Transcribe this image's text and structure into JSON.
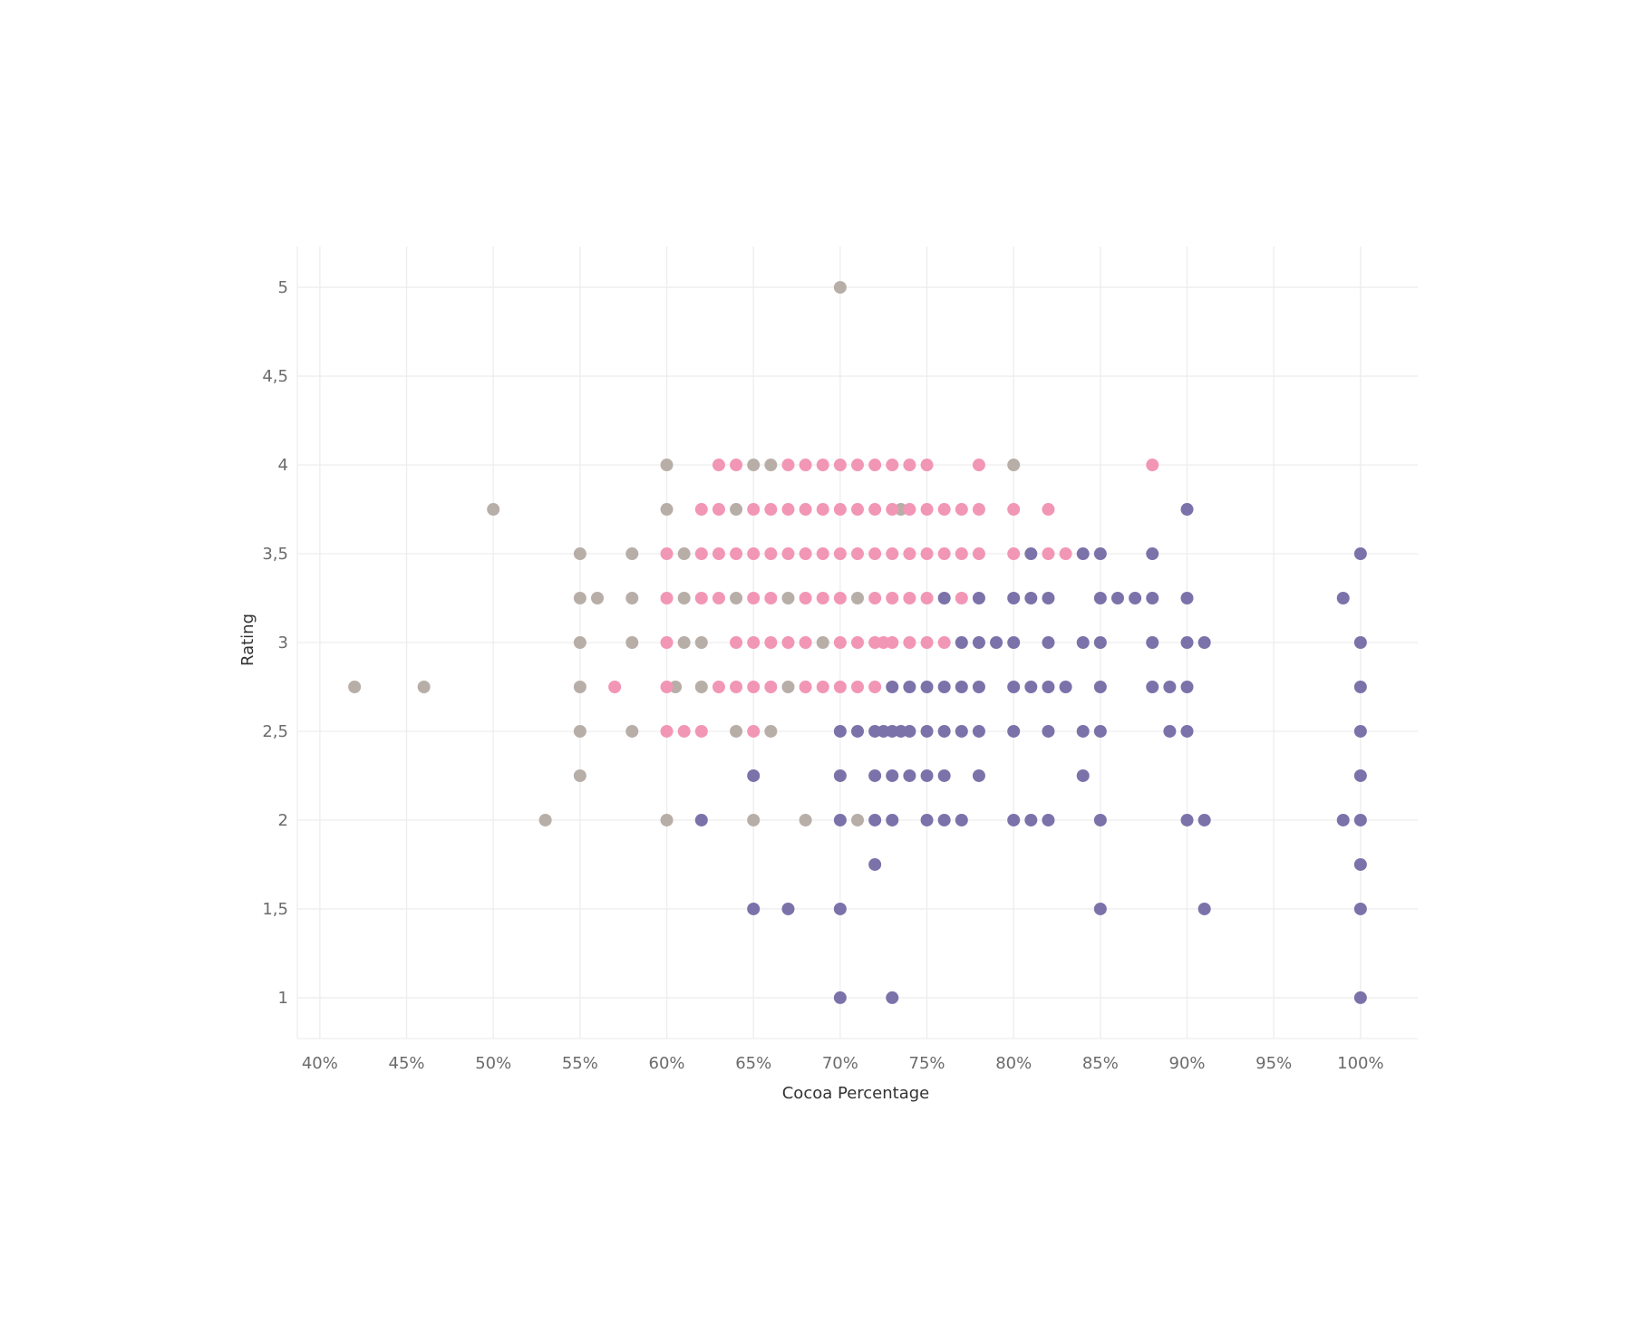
{
  "chart_data": {
    "type": "scatter",
    "title": "",
    "xlabel": "Cocoa Percentage",
    "ylabel": "Rating",
    "xlim": [
      38.7,
      103.3
    ],
    "ylim": [
      0.77,
      5.23
    ],
    "x_ticks": [
      40,
      45,
      50,
      55,
      60,
      65,
      70,
      75,
      80,
      85,
      90,
      95,
      100
    ],
    "x_tick_labels": [
      "40%",
      "45%",
      "50%",
      "55%",
      "60%",
      "65%",
      "70%",
      "75%",
      "80%",
      "85%",
      "90%",
      "95%",
      "100%"
    ],
    "y_ticks": [
      1,
      1.5,
      2,
      2.5,
      3,
      3.5,
      4,
      4.5,
      5
    ],
    "y_tick_labels": [
      "1",
      "1,5",
      "2",
      "2,5",
      "3",
      "3,5",
      "4",
      "4,5",
      "5"
    ],
    "grid": true,
    "legend": "none",
    "series": [
      {
        "color": "#b8aea8",
        "points": [
          [
            70,
            5
          ],
          [
            60,
            4
          ],
          [
            65,
            4
          ],
          [
            66,
            4
          ],
          [
            80,
            4
          ],
          [
            50,
            3.75
          ],
          [
            60,
            3.75
          ],
          [
            64,
            3.75
          ],
          [
            73.5,
            3.75
          ],
          [
            55,
            3.5
          ],
          [
            58,
            3.5
          ],
          [
            61,
            3.5
          ],
          [
            55,
            3.25
          ],
          [
            56,
            3.25
          ],
          [
            58,
            3.25
          ],
          [
            61,
            3.25
          ],
          [
            64,
            3.25
          ],
          [
            67,
            3.25
          ],
          [
            71,
            3.25
          ],
          [
            55,
            3
          ],
          [
            58,
            3
          ],
          [
            61,
            3
          ],
          [
            62,
            3
          ],
          [
            69,
            3
          ],
          [
            42,
            2.75
          ],
          [
            46,
            2.75
          ],
          [
            55,
            2.75
          ],
          [
            60.5,
            2.75
          ],
          [
            62,
            2.75
          ],
          [
            67,
            2.75
          ],
          [
            55,
            2.5
          ],
          [
            58,
            2.5
          ],
          [
            64,
            2.5
          ],
          [
            66,
            2.5
          ],
          [
            55,
            2.25
          ],
          [
            53,
            2
          ],
          [
            60,
            2
          ],
          [
            65,
            2
          ],
          [
            68,
            2
          ],
          [
            71,
            2
          ]
        ]
      },
      {
        "color": "#f296b6",
        "points": [
          [
            63,
            4
          ],
          [
            64,
            4
          ],
          [
            67,
            4
          ],
          [
            68,
            4
          ],
          [
            69,
            4
          ],
          [
            70,
            4
          ],
          [
            71,
            4
          ],
          [
            72,
            4
          ],
          [
            73,
            4
          ],
          [
            74,
            4
          ],
          [
            75,
            4
          ],
          [
            78,
            4
          ],
          [
            88,
            4
          ],
          [
            62,
            3.75
          ],
          [
            63,
            3.75
          ],
          [
            65,
            3.75
          ],
          [
            66,
            3.75
          ],
          [
            67,
            3.75
          ],
          [
            68,
            3.75
          ],
          [
            69,
            3.75
          ],
          [
            70,
            3.75
          ],
          [
            71,
            3.75
          ],
          [
            72,
            3.75
          ],
          [
            73,
            3.75
          ],
          [
            74,
            3.75
          ],
          [
            75,
            3.75
          ],
          [
            76,
            3.75
          ],
          [
            77,
            3.75
          ],
          [
            78,
            3.75
          ],
          [
            80,
            3.75
          ],
          [
            82,
            3.75
          ],
          [
            60,
            3.5
          ],
          [
            62,
            3.5
          ],
          [
            63,
            3.5
          ],
          [
            64,
            3.5
          ],
          [
            65,
            3.5
          ],
          [
            66,
            3.5
          ],
          [
            67,
            3.5
          ],
          [
            68,
            3.5
          ],
          [
            69,
            3.5
          ],
          [
            70,
            3.5
          ],
          [
            71,
            3.5
          ],
          [
            72,
            3.5
          ],
          [
            73,
            3.5
          ],
          [
            74,
            3.5
          ],
          [
            75,
            3.5
          ],
          [
            76,
            3.5
          ],
          [
            77,
            3.5
          ],
          [
            78,
            3.5
          ],
          [
            80,
            3.5
          ],
          [
            82,
            3.5
          ],
          [
            83,
            3.5
          ],
          [
            60,
            3.25
          ],
          [
            62,
            3.25
          ],
          [
            63,
            3.25
          ],
          [
            65,
            3.25
          ],
          [
            66,
            3.25
          ],
          [
            68,
            3.25
          ],
          [
            69,
            3.25
          ],
          [
            70,
            3.25
          ],
          [
            72,
            3.25
          ],
          [
            73,
            3.25
          ],
          [
            74,
            3.25
          ],
          [
            75,
            3.25
          ],
          [
            77,
            3.25
          ],
          [
            60,
            3
          ],
          [
            64,
            3
          ],
          [
            65,
            3
          ],
          [
            66,
            3
          ],
          [
            67,
            3
          ],
          [
            68,
            3
          ],
          [
            70,
            3
          ],
          [
            71,
            3
          ],
          [
            72,
            3
          ],
          [
            72.5,
            3
          ],
          [
            73,
            3
          ],
          [
            74,
            3
          ],
          [
            75,
            3
          ],
          [
            76,
            3
          ],
          [
            57,
            2.75
          ],
          [
            60,
            2.75
          ],
          [
            63,
            2.75
          ],
          [
            64,
            2.75
          ],
          [
            65,
            2.75
          ],
          [
            66,
            2.75
          ],
          [
            68,
            2.75
          ],
          [
            69,
            2.75
          ],
          [
            70,
            2.75
          ],
          [
            71,
            2.75
          ],
          [
            72,
            2.75
          ],
          [
            60,
            2.5
          ],
          [
            61,
            2.5
          ],
          [
            62,
            2.5
          ],
          [
            65,
            2.5
          ]
        ]
      },
      {
        "color": "#7c72aa",
        "points": [
          [
            90,
            3.75
          ],
          [
            81,
            3.5
          ],
          [
            84,
            3.5
          ],
          [
            85,
            3.5
          ],
          [
            88,
            3.5
          ],
          [
            100,
            3.5
          ],
          [
            76,
            3.25
          ],
          [
            78,
            3.25
          ],
          [
            80,
            3.25
          ],
          [
            81,
            3.25
          ],
          [
            82,
            3.25
          ],
          [
            85,
            3.25
          ],
          [
            86,
            3.25
          ],
          [
            87,
            3.25
          ],
          [
            88,
            3.25
          ],
          [
            90,
            3.25
          ],
          [
            99,
            3.25
          ],
          [
            77,
            3
          ],
          [
            78,
            3
          ],
          [
            79,
            3
          ],
          [
            80,
            3
          ],
          [
            82,
            3
          ],
          [
            84,
            3
          ],
          [
            85,
            3
          ],
          [
            88,
            3
          ],
          [
            90,
            3
          ],
          [
            91,
            3
          ],
          [
            100,
            3
          ],
          [
            73,
            2.75
          ],
          [
            74,
            2.75
          ],
          [
            75,
            2.75
          ],
          [
            76,
            2.75
          ],
          [
            77,
            2.75
          ],
          [
            78,
            2.75
          ],
          [
            80,
            2.75
          ],
          [
            81,
            2.75
          ],
          [
            82,
            2.75
          ],
          [
            83,
            2.75
          ],
          [
            85,
            2.75
          ],
          [
            88,
            2.75
          ],
          [
            89,
            2.75
          ],
          [
            90,
            2.75
          ],
          [
            100,
            2.75
          ],
          [
            70,
            2.5
          ],
          [
            71,
            2.5
          ],
          [
            72,
            2.5
          ],
          [
            72.5,
            2.5
          ],
          [
            73,
            2.5
          ],
          [
            73.5,
            2.5
          ],
          [
            74,
            2.5
          ],
          [
            75,
            2.5
          ],
          [
            76,
            2.5
          ],
          [
            77,
            2.5
          ],
          [
            78,
            2.5
          ],
          [
            80,
            2.5
          ],
          [
            82,
            2.5
          ],
          [
            84,
            2.5
          ],
          [
            85,
            2.5
          ],
          [
            89,
            2.5
          ],
          [
            90,
            2.5
          ],
          [
            100,
            2.5
          ],
          [
            65,
            2.25
          ],
          [
            70,
            2.25
          ],
          [
            72,
            2.25
          ],
          [
            73,
            2.25
          ],
          [
            74,
            2.25
          ],
          [
            75,
            2.25
          ],
          [
            76,
            2.25
          ],
          [
            78,
            2.25
          ],
          [
            84,
            2.25
          ],
          [
            100,
            2.25
          ],
          [
            62,
            2
          ],
          [
            70,
            2
          ],
          [
            72,
            2
          ],
          [
            73,
            2
          ],
          [
            75,
            2
          ],
          [
            76,
            2
          ],
          [
            77,
            2
          ],
          [
            80,
            2
          ],
          [
            81,
            2
          ],
          [
            82,
            2
          ],
          [
            85,
            2
          ],
          [
            90,
            2
          ],
          [
            91,
            2
          ],
          [
            99,
            2
          ],
          [
            100,
            2
          ],
          [
            72,
            1.75
          ],
          [
            100,
            1.75
          ],
          [
            65,
            1.5
          ],
          [
            67,
            1.5
          ],
          [
            70,
            1.5
          ],
          [
            85,
            1.5
          ],
          [
            91,
            1.5
          ],
          [
            100,
            1.5
          ],
          [
            70,
            1
          ],
          [
            73,
            1
          ],
          [
            100,
            1
          ]
        ]
      }
    ]
  }
}
